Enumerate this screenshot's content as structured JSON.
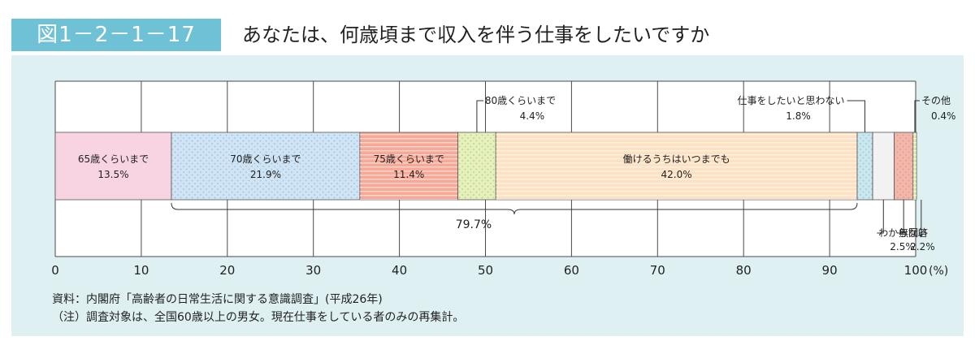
{
  "header": {
    "figure_label": "図1－2－1－17",
    "title": "あなたは、何歳頃まで収入を伴う仕事をしたいですか"
  },
  "footer": {
    "source": "資料：内閣府「高齢者の日常生活に関する意識調査」(平成26年)",
    "note": "（注）調査対象は、全国60歳以上の男女。現在仕事をしている者のみの再集計。"
  },
  "colors": {
    "panel": "#dff0f3",
    "title_bar": "#6fc1d6"
  },
  "chart_data": {
    "type": "bar",
    "orientation": "horizontal-stacked",
    "xlim": [
      0,
      100
    ],
    "unit": "(%)",
    "ticks": [
      {
        "value": 0,
        "label": "0"
      },
      {
        "value": 10,
        "label": "10"
      },
      {
        "value": 20,
        "label": "20"
      },
      {
        "value": 30,
        "label": "30"
      },
      {
        "value": 40,
        "label": "40"
      },
      {
        "value": 50,
        "label": "50"
      },
      {
        "value": 60,
        "label": "60"
      },
      {
        "value": 70,
        "label": "70"
      },
      {
        "value": 80,
        "label": "80"
      },
      {
        "value": 90,
        "label": "90"
      },
      {
        "value": 100,
        "label": "100"
      }
    ],
    "series": [
      {
        "name": "65歳くらいまで",
        "value": 13.5,
        "value_label": "13.5%",
        "color": "#f8d3e2",
        "pattern": "none",
        "label_position": "inside"
      },
      {
        "name": "70歳くらいまで",
        "value": 21.9,
        "value_label": "21.9%",
        "color": "#cfe4f5",
        "pattern": "dots",
        "label_position": "inside"
      },
      {
        "name": "75歳くらいまで",
        "value": 11.4,
        "value_label": "11.4%",
        "color": "#f7a896",
        "pattern": "hlines",
        "label_position": "inside"
      },
      {
        "name": "80歳くらいまで",
        "value": 4.4,
        "value_label": "4.4%",
        "color": "#e6f1b8",
        "pattern": "dots",
        "label_position": "above"
      },
      {
        "name": "働けるうちはいつまでも",
        "value": 42.0,
        "value_label": "42.0%",
        "color": "#fde1c3",
        "pattern": "hlines",
        "label_position": "inside"
      },
      {
        "name": "仕事をしたいと思わない",
        "value": 1.8,
        "value_label": "1.8%",
        "color": "#c9e7ef",
        "pattern": "dots",
        "label_position": "above"
      },
      {
        "name": "わからない",
        "value": 2.5,
        "value_label": "2.5%",
        "color": "#f2f2f2",
        "pattern": "none",
        "label_position": "below"
      },
      {
        "name": "無回答",
        "value": 2.2,
        "value_label": "2.2%",
        "color": "#f7b5a7",
        "pattern": "dots",
        "label_position": "below"
      },
      {
        "name": "その他",
        "value": 0.4,
        "value_label": "0.4%",
        "color": "#e3efb1",
        "pattern": "hlines",
        "label_position": "above"
      }
    ],
    "brace": {
      "from": 13.5,
      "to": 93.2,
      "label": "79.7%"
    }
  }
}
